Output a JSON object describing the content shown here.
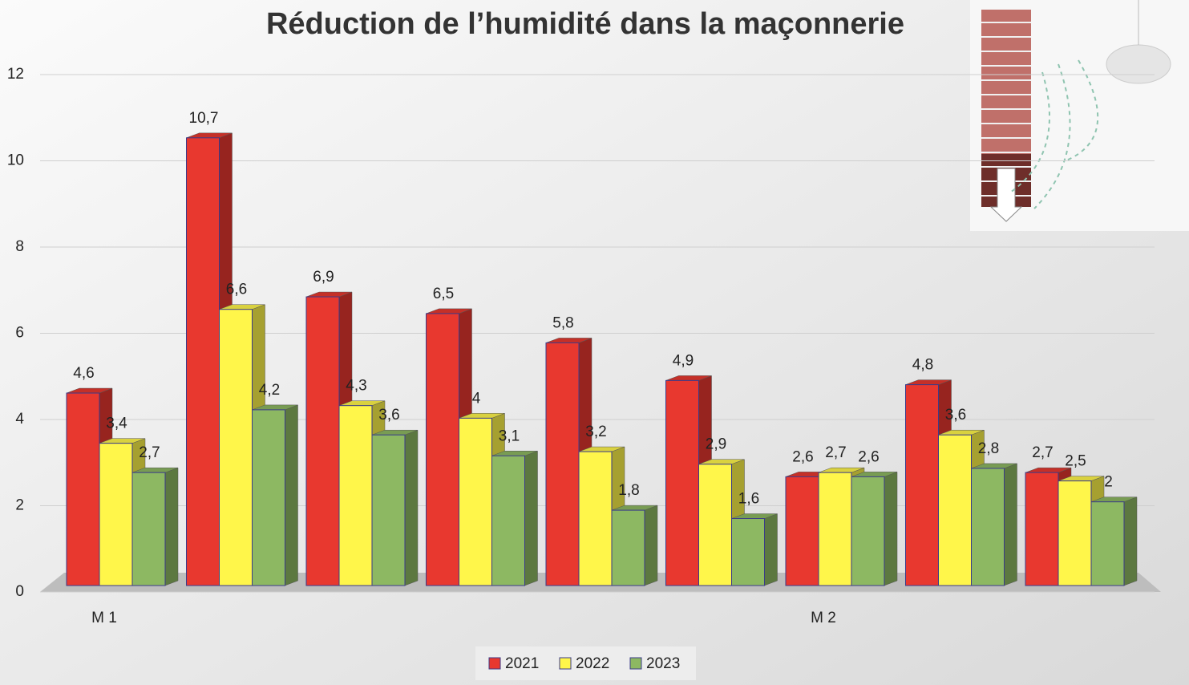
{
  "chart_data": {
    "type": "bar3d",
    "title": "Réduction de l’humidité dans la maçonnerie",
    "categories": [
      "M 1",
      null,
      null,
      null,
      null,
      null,
      "M 2",
      null,
      null
    ],
    "series": [
      {
        "name": "2021",
        "color": "#e8382f",
        "values": [
          4.6,
          10.7,
          6.9,
          6.5,
          5.8,
          4.9,
          2.6,
          4.8,
          2.7
        ],
        "value_labels": [
          "4,6",
          "10,7",
          "6,9",
          "6,5",
          "5,8",
          "4,9",
          "2,6",
          "4,8",
          "2,7"
        ]
      },
      {
        "name": "2022",
        "color": "#fff64a",
        "values": [
          3.4,
          6.6,
          4.3,
          4,
          3.2,
          2.9,
          2.7,
          3.6,
          2.5
        ],
        "value_labels": [
          "3,4",
          "6,6",
          "4,3",
          "4",
          "3,2",
          "2,9",
          "2,7",
          "3,6",
          "2,5"
        ]
      },
      {
        "name": "2023",
        "color": "#8db862",
        "values": [
          2.7,
          4.2,
          3.6,
          3.1,
          1.8,
          1.6,
          2.6,
          2.8,
          2
        ],
        "value_labels": [
          "2,7",
          "4,2",
          "3,6",
          "3,1",
          "1,8",
          "1,6",
          "2,6",
          "2,8",
          "2"
        ]
      }
    ],
    "ylim": [
      0,
      12
    ],
    "yticks": [
      0,
      2,
      4,
      6,
      8,
      10,
      12
    ],
    "grid": true
  }
}
